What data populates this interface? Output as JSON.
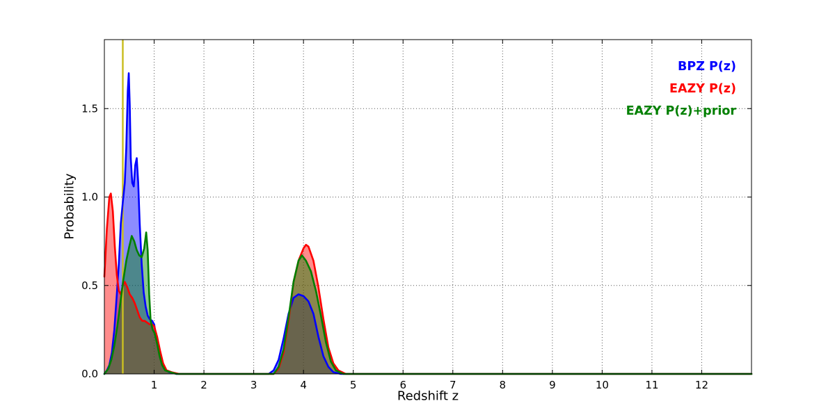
{
  "chart_data": {
    "type": "area",
    "title": "",
    "xlabel": "Redshift z",
    "ylabel": "Probability",
    "xlim": [
      0,
      13
    ],
    "ylim": [
      0,
      1.89
    ],
    "xticks": [
      1,
      2,
      3,
      4,
      5,
      6,
      7,
      8,
      9,
      10,
      11,
      12
    ],
    "yticks": [
      0.0,
      0.5,
      1.0,
      1.5
    ],
    "ytick_labels": [
      "0.0",
      "0.5",
      "1.0",
      "1.5"
    ],
    "grid": true,
    "grid_style": "dotted",
    "grid_color": "#555555",
    "axis_color": "#000000",
    "background": "#ffffff",
    "legend_position": "top-right",
    "vline": {
      "x": 0.37,
      "color": "#c9bd22"
    },
    "series": [
      {
        "id": "bpz-pz",
        "name": "BPZ P(z)",
        "color": "#0000ff",
        "fill_opacity": 0.45,
        "points": [
          [
            0,
            0
          ],
          [
            0.05,
            0.02
          ],
          [
            0.1,
            0.05
          ],
          [
            0.15,
            0.12
          ],
          [
            0.2,
            0.25
          ],
          [
            0.25,
            0.45
          ],
          [
            0.29,
            0.62
          ],
          [
            0.33,
            0.85
          ],
          [
            0.37,
            0.97
          ],
          [
            0.41,
            1.08
          ],
          [
            0.44,
            1.28
          ],
          [
            0.47,
            1.6
          ],
          [
            0.49,
            1.7
          ],
          [
            0.51,
            1.52
          ],
          [
            0.53,
            1.22
          ],
          [
            0.56,
            1.08
          ],
          [
            0.59,
            1.06
          ],
          [
            0.62,
            1.18
          ],
          [
            0.65,
            1.22
          ],
          [
            0.68,
            1.08
          ],
          [
            0.71,
            0.85
          ],
          [
            0.75,
            0.62
          ],
          [
            0.79,
            0.46
          ],
          [
            0.83,
            0.38
          ],
          [
            0.87,
            0.33
          ],
          [
            0.91,
            0.31
          ],
          [
            0.96,
            0.3
          ],
          [
            1.0,
            0.28
          ],
          [
            1.05,
            0.2
          ],
          [
            1.1,
            0.12
          ],
          [
            1.15,
            0.06
          ],
          [
            1.2,
            0.03
          ],
          [
            1.3,
            0.01
          ],
          [
            1.45,
            0
          ],
          [
            3.3,
            0
          ],
          [
            3.4,
            0.02
          ],
          [
            3.5,
            0.08
          ],
          [
            3.6,
            0.2
          ],
          [
            3.7,
            0.34
          ],
          [
            3.8,
            0.43
          ],
          [
            3.9,
            0.45
          ],
          [
            4.0,
            0.44
          ],
          [
            4.1,
            0.41
          ],
          [
            4.2,
            0.34
          ],
          [
            4.3,
            0.21
          ],
          [
            4.4,
            0.1
          ],
          [
            4.5,
            0.04
          ],
          [
            4.6,
            0.01
          ],
          [
            4.75,
            0
          ],
          [
            13,
            0
          ]
        ]
      },
      {
        "id": "eazy-pz",
        "name": "EAZY P(z)",
        "color": "#ff0000",
        "fill_opacity": 0.45,
        "points": [
          [
            0,
            0.55
          ],
          [
            0.05,
            0.82
          ],
          [
            0.1,
            1.0
          ],
          [
            0.13,
            1.02
          ],
          [
            0.17,
            0.92
          ],
          [
            0.21,
            0.72
          ],
          [
            0.25,
            0.56
          ],
          [
            0.29,
            0.47
          ],
          [
            0.33,
            0.45
          ],
          [
            0.37,
            0.5
          ],
          [
            0.41,
            0.52
          ],
          [
            0.46,
            0.49
          ],
          [
            0.51,
            0.45
          ],
          [
            0.56,
            0.43
          ],
          [
            0.61,
            0.4
          ],
          [
            0.66,
            0.36
          ],
          [
            0.71,
            0.32
          ],
          [
            0.76,
            0.3
          ],
          [
            0.81,
            0.3
          ],
          [
            0.86,
            0.29
          ],
          [
            0.91,
            0.28
          ],
          [
            0.96,
            0.28
          ],
          [
            1.0,
            0.27
          ],
          [
            1.06,
            0.21
          ],
          [
            1.12,
            0.13
          ],
          [
            1.18,
            0.06
          ],
          [
            1.25,
            0.02
          ],
          [
            1.35,
            0.01
          ],
          [
            1.5,
            0
          ],
          [
            3.4,
            0
          ],
          [
            3.5,
            0.03
          ],
          [
            3.6,
            0.12
          ],
          [
            3.7,
            0.3
          ],
          [
            3.8,
            0.52
          ],
          [
            3.9,
            0.64
          ],
          [
            4.0,
            0.71
          ],
          [
            4.05,
            0.73
          ],
          [
            4.1,
            0.72
          ],
          [
            4.2,
            0.64
          ],
          [
            4.3,
            0.49
          ],
          [
            4.4,
            0.31
          ],
          [
            4.5,
            0.15
          ],
          [
            4.6,
            0.06
          ],
          [
            4.7,
            0.02
          ],
          [
            4.85,
            0
          ],
          [
            13,
            0
          ]
        ]
      },
      {
        "id": "eazy-pz-prior",
        "name": "EAZY P(z)+prior",
        "color": "#008000",
        "fill_opacity": 0.45,
        "points": [
          [
            0,
            0
          ],
          [
            0.08,
            0.03
          ],
          [
            0.14,
            0.08
          ],
          [
            0.2,
            0.16
          ],
          [
            0.26,
            0.27
          ],
          [
            0.32,
            0.4
          ],
          [
            0.38,
            0.53
          ],
          [
            0.44,
            0.64
          ],
          [
            0.5,
            0.72
          ],
          [
            0.55,
            0.78
          ],
          [
            0.6,
            0.75
          ],
          [
            0.65,
            0.7
          ],
          [
            0.7,
            0.67
          ],
          [
            0.75,
            0.66
          ],
          [
            0.8,
            0.71
          ],
          [
            0.84,
            0.8
          ],
          [
            0.87,
            0.7
          ],
          [
            0.9,
            0.45
          ],
          [
            0.93,
            0.3
          ],
          [
            0.97,
            0.25
          ],
          [
            1.01,
            0.23
          ],
          [
            1.06,
            0.17
          ],
          [
            1.11,
            0.1
          ],
          [
            1.16,
            0.05
          ],
          [
            1.22,
            0.02
          ],
          [
            1.32,
            0.01
          ],
          [
            1.45,
            0
          ],
          [
            3.4,
            0
          ],
          [
            3.5,
            0.04
          ],
          [
            3.6,
            0.14
          ],
          [
            3.7,
            0.32
          ],
          [
            3.8,
            0.52
          ],
          [
            3.9,
            0.64
          ],
          [
            3.97,
            0.67
          ],
          [
            4.05,
            0.64
          ],
          [
            4.15,
            0.58
          ],
          [
            4.25,
            0.47
          ],
          [
            4.35,
            0.33
          ],
          [
            4.45,
            0.18
          ],
          [
            4.55,
            0.07
          ],
          [
            4.65,
            0.02
          ],
          [
            4.8,
            0
          ],
          [
            13,
            0
          ]
        ]
      }
    ]
  }
}
